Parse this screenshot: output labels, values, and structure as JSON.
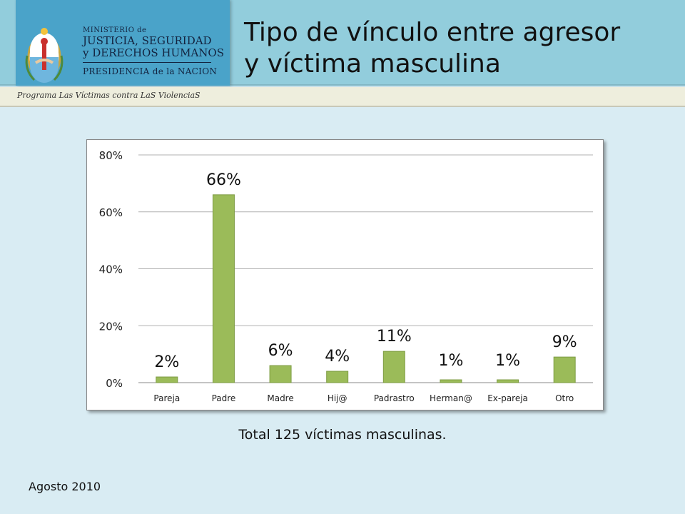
{
  "header": {
    "ministry_line1": "MINISTERIO de",
    "ministry_line2": "JUSTICIA, SEGURIDAD",
    "ministry_line3": "y DERECHOS HUMANOS",
    "ministry_line4": "PRESIDENCIA de la NACION",
    "title_line1": "Tipo de vínculo entre agresor",
    "title_line2": "y víctima masculina"
  },
  "program": "Programa Las Víctimas contra LaS ViolenciaS",
  "footer": {
    "total": "Total 125 víctimas masculinas.",
    "date": "Agosto 2010"
  },
  "colors": {
    "bar": "#9bbb59",
    "bar_edge": "#7e9c44",
    "header": "#92cddc",
    "logo_panel": "#4aa3c9"
  },
  "chart_data": {
    "type": "bar",
    "categories": [
      "Pareja",
      "Padre",
      "Madre",
      "Hij@",
      "Padrastro",
      "Herman@",
      "Ex-pareja",
      "Otro"
    ],
    "values": [
      2,
      66,
      6,
      4,
      11,
      1,
      1,
      9
    ],
    "data_labels": [
      "2%",
      "66%",
      "6%",
      "4%",
      "11%",
      "1%",
      "1%",
      "9%"
    ],
    "yticks": [
      "0%",
      "20%",
      "40%",
      "60%",
      "80%"
    ],
    "ytick_values": [
      0,
      20,
      40,
      60,
      80
    ],
    "ylim": [
      0,
      80
    ],
    "grid": true,
    "legend": false
  }
}
